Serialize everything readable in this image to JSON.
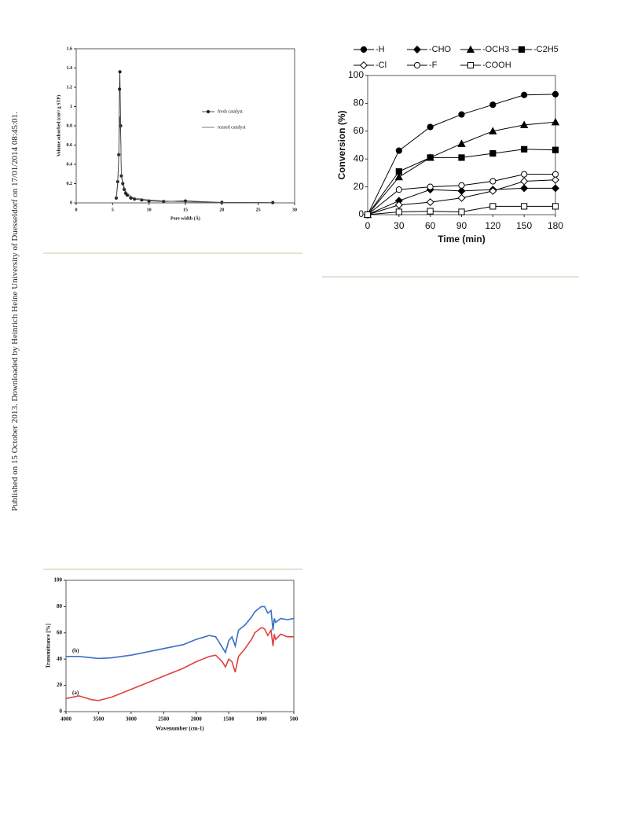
{
  "side_note": "Published on 15 October 2013. Downloaded by Heinrich Heine University of Duesseldorf on 17/01/2014 08:45:01.",
  "chart_data": [
    {
      "type": "line",
      "xlabel": "Pore width (Å)",
      "ylabel": "Volume adsorbed (cm³/ g STP)",
      "x": [
        5.5,
        5.7,
        5.85,
        5.95,
        6.0,
        6.1,
        6.2,
        6.4,
        6.6,
        6.8,
        7,
        7.5,
        8,
        9,
        10,
        12,
        15,
        20,
        27
      ],
      "series": [
        {
          "name": "fresh catalyst",
          "color": "#222222",
          "marker": "circle",
          "filled": true,
          "values": [
            0.05,
            0.22,
            0.5,
            1.18,
            1.36,
            0.8,
            0.28,
            0.2,
            0.14,
            0.1,
            0.08,
            0.05,
            0.04,
            0.03,
            0.02,
            0.015,
            0.02,
            0.005,
            0.003
          ]
        },
        {
          "name": "reused catalyst",
          "color": "#555555",
          "values": [
            0.04,
            0.18,
            0.45,
            0.85,
            0.9,
            0.7,
            0.3,
            0.22,
            0.16,
            0.12,
            0.1,
            0.07,
            0.05,
            0.04,
            0.03,
            0.02,
            0.01,
            0.005,
            0.003
          ]
        }
      ],
      "xlim": [
        0,
        30
      ],
      "xticks": [
        0,
        5,
        10,
        15,
        20,
        25,
        30
      ],
      "ylim": [
        0,
        1.6
      ],
      "yticks": [
        0,
        0.2,
        0.4,
        0.6,
        0.8,
        1,
        1.2,
        1.4,
        1.6
      ],
      "legend": "right"
    },
    {
      "type": "line",
      "xlabel": "Time (min)",
      "ylabel": "Conversion (%)",
      "x": [
        0,
        30,
        60,
        90,
        120,
        150,
        180
      ],
      "series": [
        {
          "name": "-H",
          "color": "#000000",
          "marker": "circle",
          "filled": true,
          "values": [
            0,
            46,
            63,
            72,
            79,
            86,
            86.5
          ]
        },
        {
          "name": "-CHO",
          "color": "#000000",
          "marker": "diamond",
          "filled": true,
          "values": [
            0,
            10,
            18,
            17,
            18,
            19,
            19
          ]
        },
        {
          "name": "-OCH3",
          "color": "#000000",
          "marker": "triangle",
          "filled": true,
          "values": [
            0,
            27,
            41,
            51,
            60,
            64.5,
            66.5
          ]
        },
        {
          "name": "-C2H5",
          "color": "#000000",
          "marker": "square",
          "filled": true,
          "values": [
            0,
            31,
            41,
            41,
            44,
            47,
            46.5
          ]
        },
        {
          "name": "-Cl",
          "color": "#000000",
          "marker": "diamond",
          "filled": false,
          "values": [
            0,
            7,
            9,
            12,
            17,
            24,
            25
          ]
        },
        {
          "name": "-F",
          "color": "#000000",
          "marker": "circle",
          "filled": false,
          "values": [
            0,
            18,
            20,
            21,
            24,
            29,
            29
          ]
        },
        {
          "name": "-COOH",
          "color": "#000000",
          "marker": "square",
          "filled": false,
          "values": [
            0,
            2,
            2.5,
            2,
            6,
            6,
            6
          ]
        }
      ],
      "xlim": [
        0,
        180
      ],
      "xticks": [
        0,
        30,
        60,
        90,
        120,
        150,
        180
      ],
      "ylim": [
        0,
        100
      ],
      "yticks": [
        0,
        20,
        40,
        60,
        80,
        100
      ],
      "legend": "top"
    },
    {
      "type": "line",
      "xlabel": "Wavenumber (cm-1)",
      "ylabel": "Transmittance [%]",
      "x": [
        4000,
        3800,
        3600,
        3500,
        3300,
        3000,
        2700,
        2500,
        2200,
        2000,
        1800,
        1700,
        1600,
        1550,
        1500,
        1450,
        1400,
        1350,
        1250,
        1150,
        1100,
        1050,
        1000,
        950,
        900,
        850,
        820,
        800,
        780,
        700,
        600,
        500
      ],
      "series": [
        {
          "name": "(a)",
          "color": "#e04040",
          "values": [
            10,
            12,
            9,
            8.5,
            11,
            17,
            23,
            27,
            33,
            38,
            42,
            43,
            38,
            34,
            40,
            38,
            30,
            42,
            48,
            55,
            60,
            62,
            64,
            63,
            58,
            62,
            50,
            59,
            55,
            59,
            57,
            57
          ]
        },
        {
          "name": "(b)",
          "color": "#3a6fc4",
          "values": [
            42,
            42,
            41,
            40.5,
            41,
            43,
            46,
            48,
            51,
            55,
            58,
            57,
            49,
            45,
            54,
            57,
            50,
            62,
            66,
            72,
            76,
            78,
            80,
            80,
            75,
            77,
            62,
            71,
            68,
            71,
            70,
            71
          ]
        }
      ],
      "xlim": [
        4000,
        500
      ],
      "xticks": [
        4000,
        3500,
        3000,
        2500,
        2000,
        1500,
        1000,
        500
      ],
      "ylim": [
        0,
        100
      ],
      "yticks": [
        0,
        20,
        40,
        60,
        80,
        100
      ],
      "legend": "inline"
    }
  ]
}
